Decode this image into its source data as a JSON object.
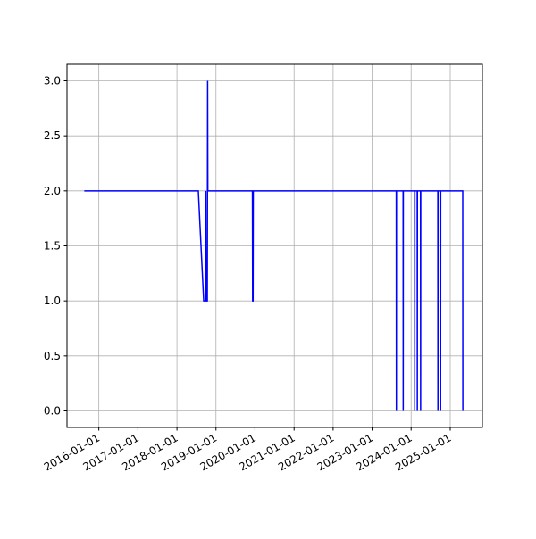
{
  "chart_data": {
    "type": "line",
    "x": [
      "2015-08-18",
      "2018-07-20",
      "2018-09-08",
      "2018-09-26",
      "2018-09-28",
      "2018-10-01",
      "2018-10-12",
      "2018-10-15",
      "2018-10-17",
      "2019-12-08",
      "2019-12-10",
      "2019-12-14",
      "2019-12-16",
      "2023-08-15",
      "2023-08-16",
      "2023-08-17",
      "2023-10-18",
      "2023-10-19",
      "2023-10-20",
      "2024-02-03",
      "2024-02-04",
      "2024-02-05",
      "2024-02-27",
      "2024-02-28",
      "2024-02-29",
      "2024-03-29",
      "2024-03-30",
      "2024-03-31",
      "2024-09-07",
      "2024-09-08",
      "2024-09-09",
      "2024-10-02",
      "2024-10-03",
      "2024-10-04",
      "2025-04-28",
      "2025-04-29"
    ],
    "series": [
      {
        "name": "value",
        "color": "#0000ff",
        "values": [
          2,
          2,
          1,
          1,
          2,
          1,
          1,
          3,
          2,
          2,
          1,
          1,
          2,
          2,
          0,
          2,
          2,
          0,
          2,
          2,
          0,
          2,
          2,
          0,
          2,
          2,
          0,
          2,
          2,
          0,
          2,
          2,
          0,
          2,
          2,
          0
        ]
      }
    ],
    "xlim": [
      "2015-03-09",
      "2025-10-29"
    ],
    "xticks": [
      "2016-01-01",
      "2017-01-01",
      "2018-01-01",
      "2019-01-01",
      "2020-01-01",
      "2021-01-01",
      "2022-01-01",
      "2023-01-01",
      "2024-01-01",
      "2025-01-01"
    ],
    "ylim": [
      -0.15,
      3.15
    ],
    "yticks": [
      {
        "value": 0,
        "label": "0.0"
      },
      {
        "value": 0.5,
        "label": "0.5"
      },
      {
        "value": 1,
        "label": "1.0"
      },
      {
        "value": 1.5,
        "label": "1.5"
      },
      {
        "value": 2,
        "label": "2.0"
      },
      {
        "value": 2.5,
        "label": "2.5"
      },
      {
        "value": 3,
        "label": "3.0"
      }
    ],
    "grid": true
  }
}
